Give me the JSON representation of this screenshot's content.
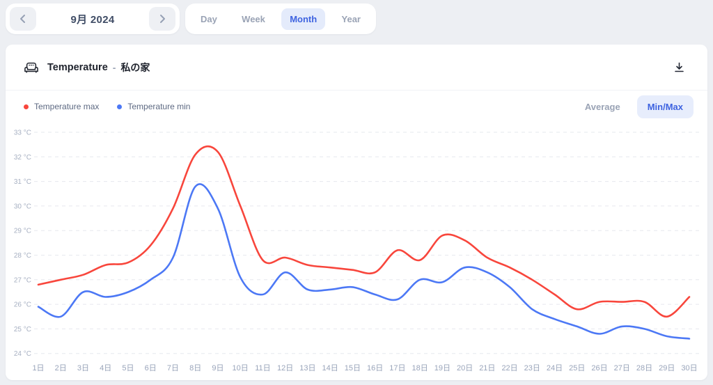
{
  "date_nav": {
    "label": "9月 2024"
  },
  "icons": {
    "prev": "chevron-left-icon",
    "next": "chevron-right-icon",
    "header": "sofa-icon",
    "download": "download-icon"
  },
  "period_tabs": {
    "items": [
      {
        "label": "Day",
        "active": false
      },
      {
        "label": "Week",
        "active": false
      },
      {
        "label": "Month",
        "active": true
      },
      {
        "label": "Year",
        "active": false
      }
    ]
  },
  "card": {
    "title": "Temperature",
    "separator": "-",
    "subtitle": "私の家"
  },
  "view_switch": {
    "average_label": "Average",
    "minmax_label": "Min/Max"
  },
  "colors": {
    "max_line": "#f8463c",
    "min_line": "#4c78f5",
    "grid": "#e6e8ee",
    "y_tick_text": "#a7b0c2",
    "x_tick_text": "#99a4ba",
    "accent_blue": "#3e63e0",
    "accent_blue_bg": "#e7edfc"
  },
  "chart_data": {
    "type": "line",
    "title": "Temperature - 私の家",
    "categories": [
      "1日",
      "2日",
      "3日",
      "4日",
      "5日",
      "6日",
      "7日",
      "8日",
      "9日",
      "10日",
      "11日",
      "12日",
      "13日",
      "14日",
      "15日",
      "16日",
      "17日",
      "18日",
      "19日",
      "20日",
      "21日",
      "22日",
      "23日",
      "24日",
      "25日",
      "26日",
      "27日",
      "28日",
      "29日",
      "30日"
    ],
    "series": [
      {
        "name": "Temperature max",
        "color": "#f8463c",
        "values": [
          26.8,
          27.0,
          27.2,
          27.6,
          27.7,
          28.4,
          29.9,
          32.1,
          32.2,
          30.0,
          27.8,
          27.9,
          27.6,
          27.5,
          27.4,
          27.3,
          28.2,
          27.8,
          28.8,
          28.6,
          27.9,
          27.5,
          27.0,
          26.4,
          25.8,
          26.1,
          26.1,
          26.1,
          25.5,
          26.3
        ]
      },
      {
        "name": "Temperature min",
        "color": "#4c78f5",
        "values": [
          25.9,
          25.5,
          26.5,
          26.3,
          26.5,
          27.0,
          27.9,
          30.8,
          29.9,
          27.1,
          26.4,
          27.3,
          26.6,
          26.6,
          26.7,
          26.4,
          26.2,
          27.0,
          26.9,
          27.5,
          27.3,
          26.7,
          25.8,
          25.4,
          25.1,
          24.8,
          25.1,
          25.0,
          24.7,
          24.6
        ]
      }
    ],
    "y_ticks": [
      33,
      32,
      31,
      30,
      29,
      28,
      27,
      26,
      25,
      24
    ],
    "y_tick_suffix": " °C",
    "ylim": [
      24,
      33
    ],
    "xlabel": "",
    "ylabel": "",
    "grid": "horizontal-dashed",
    "legend_position": "top-left",
    "legend": [
      "Temperature max",
      "Temperature min"
    ]
  }
}
